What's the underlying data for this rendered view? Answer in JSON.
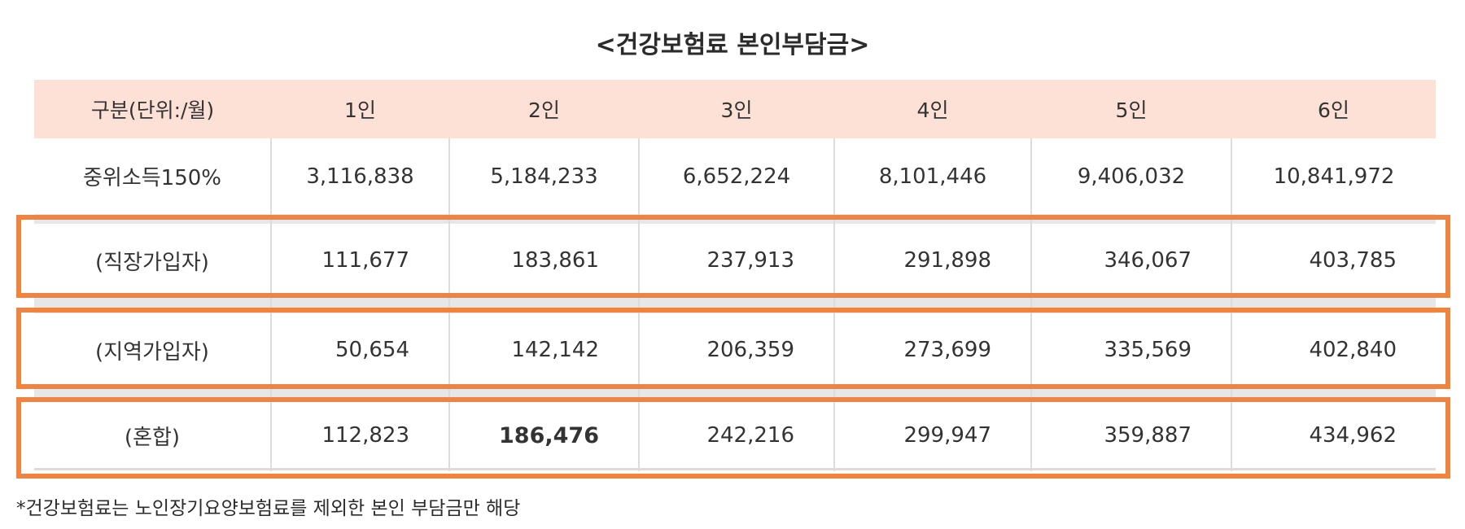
{
  "title": "<건강보험료 본인부담금>",
  "table": {
    "headers": [
      "구분(단위:/월)",
      "1인",
      "2인",
      "3인",
      "4인",
      "5인",
      "6인"
    ],
    "median_row": {
      "label": "중위소득150%",
      "values": [
        "3,116,838",
        "5,184,233",
        "6,652,224",
        "8,101,446",
        "9,406,032",
        "10,841,972"
      ]
    },
    "rows": [
      {
        "label": "(직장가입자)",
        "values": [
          "111,677",
          "183,861",
          "237,913",
          "291,898",
          "346,067",
          "403,785"
        ]
      },
      {
        "label": "(지역가입자)",
        "values": [
          "50,654",
          "142,142",
          "206,359",
          "273,699",
          "335,569",
          "402,840"
        ]
      },
      {
        "label": "(혼합)",
        "values": [
          "112,823",
          "186,476",
          "242,216",
          "299,947",
          "359,887",
          "434,962"
        ]
      }
    ]
  },
  "highlight_color": "#ee8440",
  "header_bg_color": "#fde0d6",
  "footnote": "*건강보험료는 노인장기요양보험료를 제외한 본인 부담금만 해당"
}
